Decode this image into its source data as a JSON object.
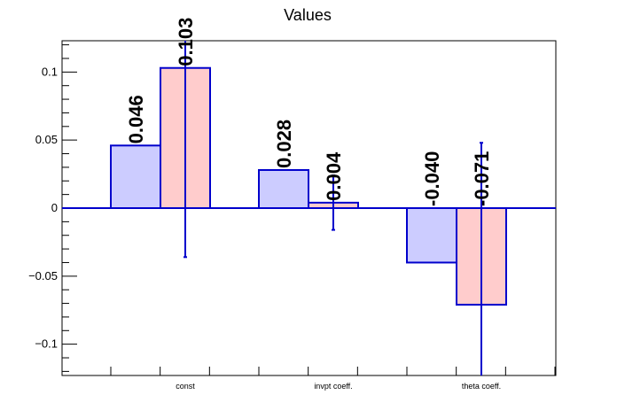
{
  "chart_data": {
    "type": "bar",
    "title": "Values",
    "categories": [
      "const",
      "invpt coeff.",
      "theta coeff."
    ],
    "series": [
      {
        "color": "#ccccff",
        "values": [
          0.046,
          0.028,
          -0.04
        ],
        "labels": [
          "0.046",
          "0.028",
          "-0.040"
        ],
        "errors": [
          null,
          null,
          null
        ]
      },
      {
        "color": "#ffcccc",
        "values": [
          0.103,
          0.004,
          -0.071
        ],
        "labels": [
          "0.103",
          "0.004",
          "-0.071"
        ],
        "errors": [
          0.139,
          0.02,
          0.119
        ]
      }
    ],
    "ylim": [
      -0.123,
      0.123
    ],
    "yticks": [
      {
        "v": 0.1,
        "label": "0.1"
      },
      {
        "v": 0.05,
        "label": "0.05"
      },
      {
        "v": 0,
        "label": "0"
      },
      {
        "v": -0.05,
        "label": "−0.05"
      },
      {
        "v": -0.1,
        "label": "−0.1"
      }
    ],
    "edge_color": "#0000cc",
    "grid": false
  }
}
